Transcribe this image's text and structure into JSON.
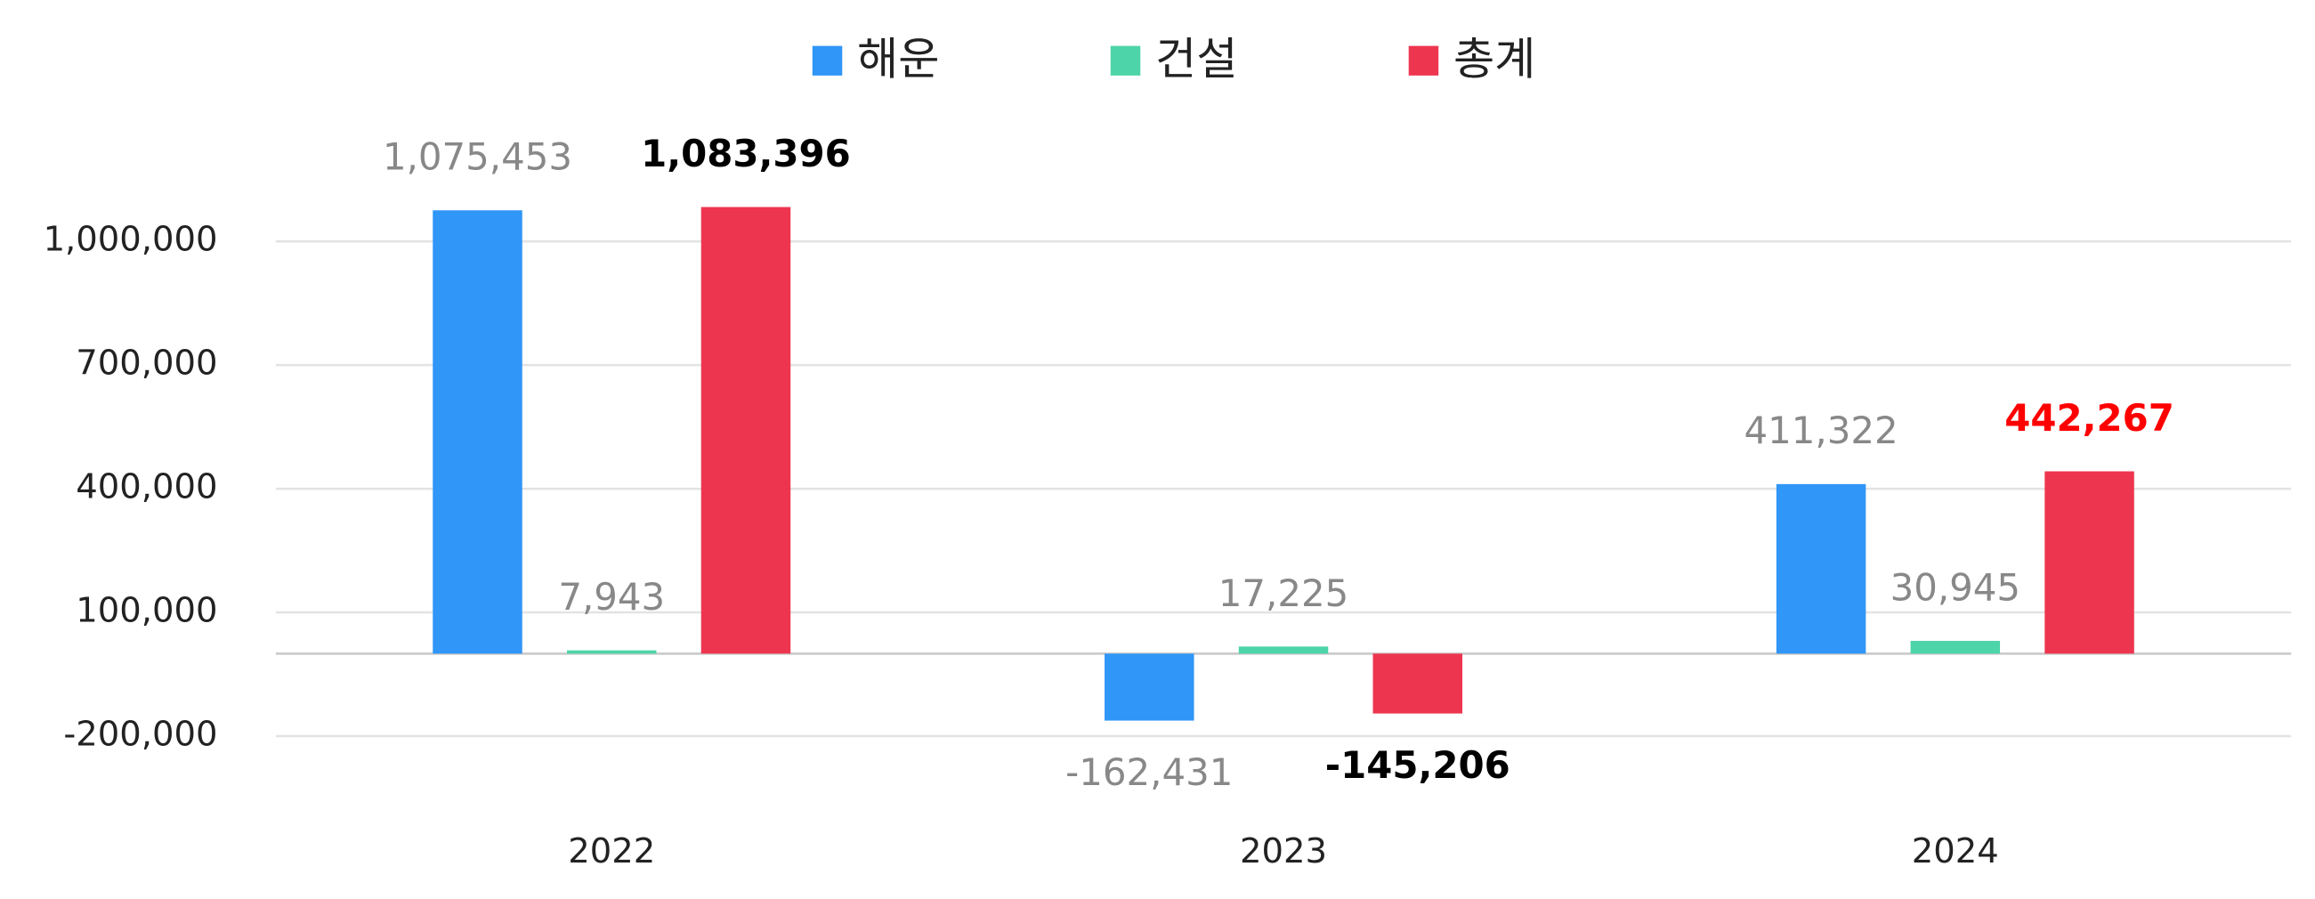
{
  "chart_data": {
    "type": "bar",
    "categories": [
      "2022",
      "2023",
      "2024"
    ],
    "series": [
      {
        "name": "해운",
        "color": "#3096f7",
        "values": [
          1075453,
          -162431,
          411322
        ],
        "value_labels": [
          "1,075,453",
          "-162,431",
          "411,322"
        ],
        "label_colors": [
          "#888888",
          "#888888",
          "#888888"
        ]
      },
      {
        "name": "건설",
        "color": "#4dd4a8",
        "values": [
          7943,
          17225,
          30945
        ],
        "value_labels": [
          "7,943",
          "17,225",
          "30,945"
        ],
        "label_colors": [
          "#888888",
          "#888888",
          "#888888"
        ]
      },
      {
        "name": "총계",
        "color": "#ee354f",
        "values": [
          1083396,
          -145206,
          442267
        ],
        "value_labels": [
          "1,083,396",
          "-145,206",
          "442,267"
        ],
        "label_colors": [
          "#000000",
          "#000000",
          "#ff0000"
        ],
        "label_bold": true
      }
    ],
    "ylim": [
      -200000,
      1000000
    ],
    "yticks": [
      {
        "value": -200000,
        "label": "-200,000"
      },
      {
        "value": 100000,
        "label": "100,000"
      },
      {
        "value": 400000,
        "label": "400,000"
      },
      {
        "value": 700000,
        "label": "700,000"
      },
      {
        "value": 1000000,
        "label": "1,000,000"
      }
    ],
    "grid": true,
    "legend": "top"
  }
}
